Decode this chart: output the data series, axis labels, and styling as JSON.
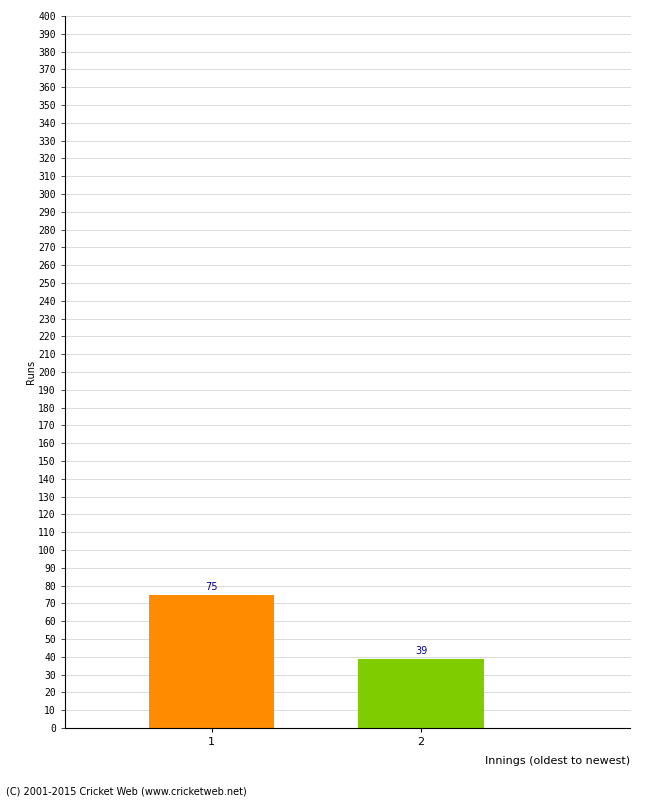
{
  "categories": [
    "1",
    "2"
  ],
  "values": [
    75,
    39
  ],
  "bar_colors": [
    "#FF8C00",
    "#7FCC00"
  ],
  "ylabel": "Runs",
  "xlabel": "Innings (oldest to newest)",
  "ylim": [
    0,
    400
  ],
  "ytick_step": 10,
  "annotation_color": "#00008B",
  "annotation_fontsize": 7,
  "footer": "(C) 2001-2015 Cricket Web (www.cricketweb.net)",
  "background_color": "#ffffff",
  "grid_color": "#cccccc",
  "bar_positions": [
    1,
    2
  ],
  "bar_width": 0.6,
  "xlim": [
    0.3,
    3.0
  ]
}
